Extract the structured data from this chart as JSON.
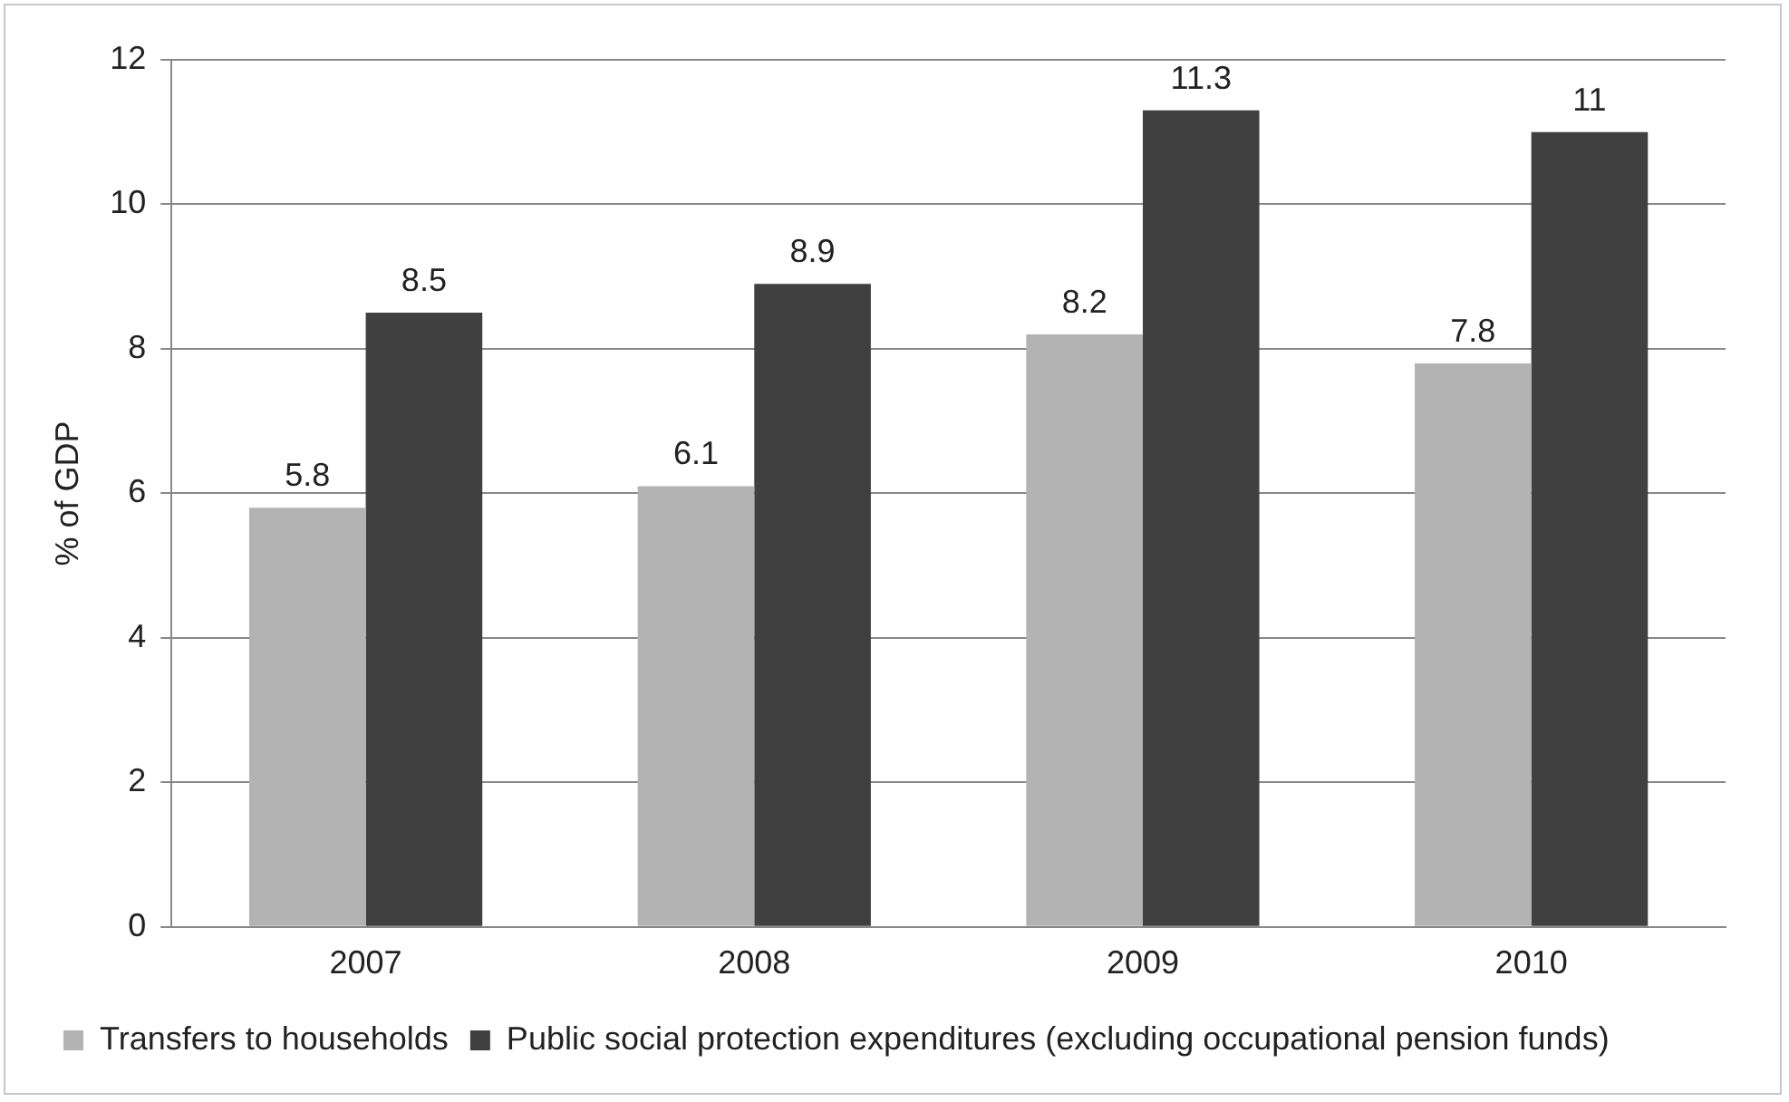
{
  "chart_data": {
    "type": "bar",
    "ylabel": "% of GDP",
    "categories": [
      "2007",
      "2008",
      "2009",
      "2010"
    ],
    "series": [
      {
        "name": "Transfers to households",
        "color": "#b3b3b3",
        "values": [
          5.8,
          6.1,
          8.2,
          7.8
        ]
      },
      {
        "name": "Public social protection expenditures (excluding occupational pension funds)",
        "color": "#404040",
        "values": [
          8.5,
          8.9,
          11.3,
          11
        ]
      }
    ],
    "ylim": [
      0,
      12
    ],
    "yticks": [
      0,
      2,
      4,
      6,
      8,
      10,
      12
    ],
    "grid": "y",
    "legend": "bottom left",
    "data_labels": true
  }
}
